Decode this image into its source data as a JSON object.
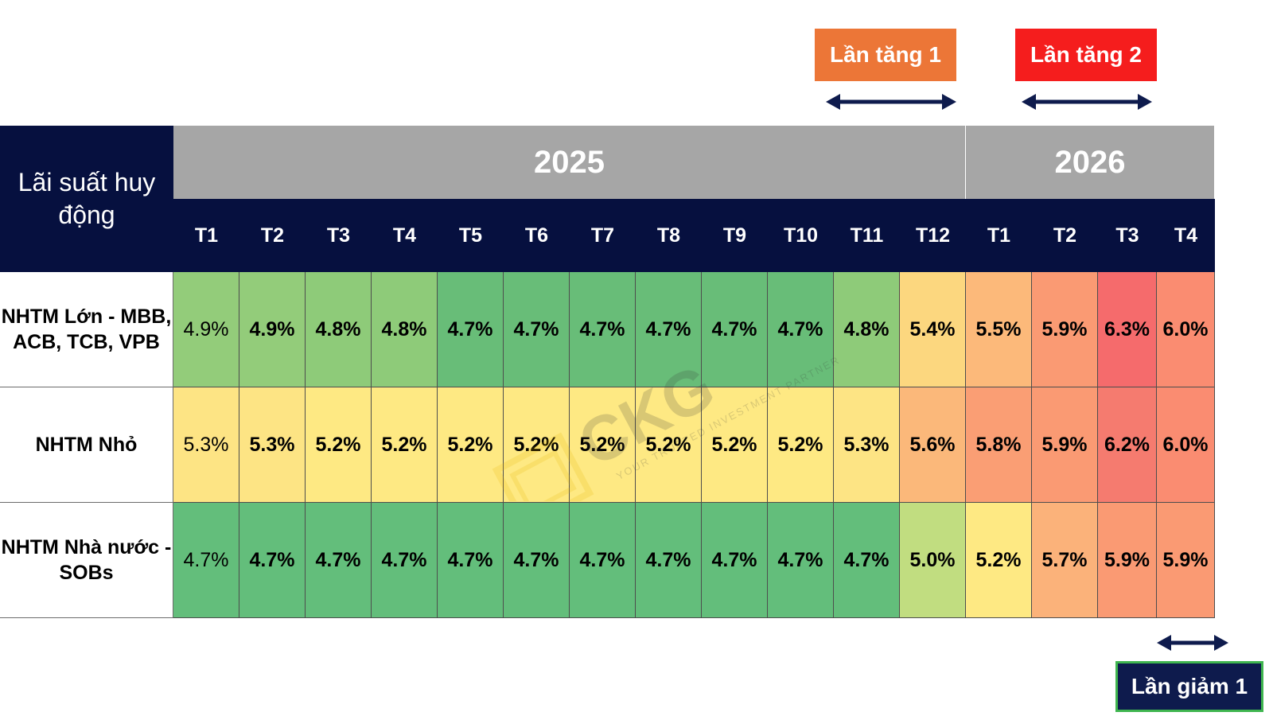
{
  "annotations": {
    "increase_1": "Lần tăng 1",
    "increase_2": "Lần tăng 2",
    "decrease_1": "Lần giảm 1"
  },
  "watermark": {
    "logo": "CKG",
    "tagline": "YOUR TRUSTED INVESTMENT PARTNER"
  },
  "colors": {
    "header_navy": "#06103f",
    "year_gray": "#a6a6a6",
    "increase_1": "#ec7637",
    "increase_2": "#f51d1d",
    "decrease_1_border": "#3fb54f"
  },
  "chart_data": {
    "type": "table",
    "corner_label": "Lãi suất huy động",
    "years": [
      {
        "label": "2025",
        "span": 12
      },
      {
        "label": "2026",
        "span": 4
      }
    ],
    "columns": [
      "T1",
      "T2",
      "T3",
      "T4",
      "T5",
      "T6",
      "T7",
      "T8",
      "T9",
      "T10",
      "T11",
      "T12",
      "T1",
      "T2",
      "T3",
      "T4"
    ],
    "rows": [
      {
        "label": "NHTM Lớn - MBB, ACB, TCB, VPB",
        "values": [
          "4.9%",
          "4.9%",
          "4.8%",
          "4.8%",
          "4.7%",
          "4.7%",
          "4.7%",
          "4.7%",
          "4.7%",
          "4.7%",
          "4.8%",
          "5.4%",
          "5.5%",
          "5.9%",
          "6.3%",
          "6.0%"
        ],
        "colors": [
          "#93cc7a",
          "#93cc7a",
          "#8ecb79",
          "#8ecb79",
          "#68bd78",
          "#68bd78",
          "#68bd78",
          "#68bd78",
          "#68bd78",
          "#68bd78",
          "#8ecb79",
          "#fcd77f",
          "#fcb97a",
          "#fa9a73",
          "#f56b6c",
          "#fa8c71"
        ]
      },
      {
        "label": "NHTM Nhỏ",
        "values": [
          "5.3%",
          "5.3%",
          "5.2%",
          "5.2%",
          "5.2%",
          "5.2%",
          "5.2%",
          "5.2%",
          "5.2%",
          "5.2%",
          "5.3%",
          "5.6%",
          "5.8%",
          "5.9%",
          "6.2%",
          "6.0%"
        ],
        "colors": [
          "#fde484",
          "#fde484",
          "#fee983",
          "#fee983",
          "#fee983",
          "#fee983",
          "#fee983",
          "#fee983",
          "#fee983",
          "#fee983",
          "#fde484",
          "#fbb87a",
          "#fa9e74",
          "#fa9a73",
          "#f57b6f",
          "#fa8c71"
        ]
      },
      {
        "label": "NHTM Nhà nước - SOBs",
        "values": [
          "4.7%",
          "4.7%",
          "4.7%",
          "4.7%",
          "4.7%",
          "4.7%",
          "4.7%",
          "4.7%",
          "4.7%",
          "4.7%",
          "4.7%",
          "5.0%",
          "5.2%",
          "5.7%",
          "5.9%",
          "5.9%"
        ],
        "colors": [
          "#63be7b",
          "#63be7b",
          "#63be7b",
          "#63be7b",
          "#63be7b",
          "#63be7b",
          "#63be7b",
          "#63be7b",
          "#63be7b",
          "#63be7b",
          "#63be7b",
          "#c1dd80",
          "#fee983",
          "#fbb27a",
          "#fa9a73",
          "#fa9a73"
        ]
      }
    ]
  }
}
